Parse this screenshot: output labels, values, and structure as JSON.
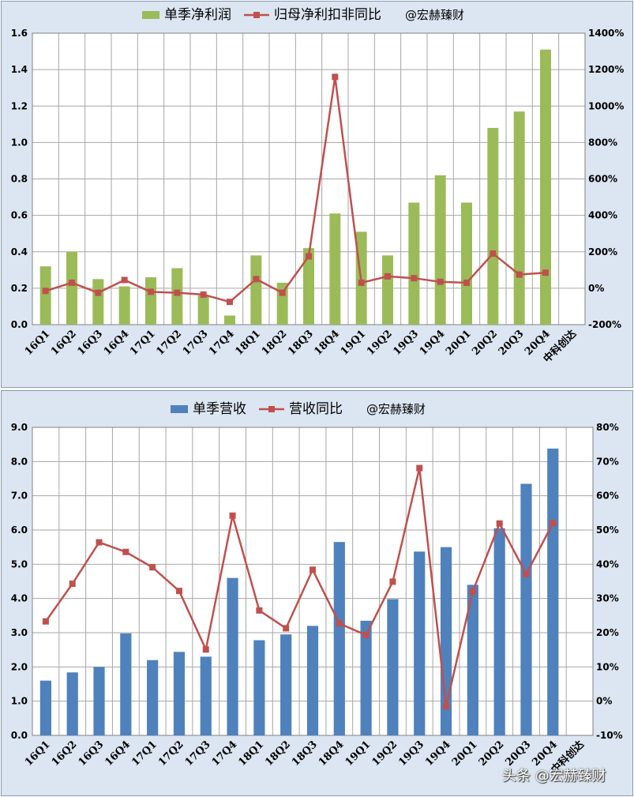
{
  "colors": {
    "panel_bg": "#dce6f2",
    "plot_bg": "#ffffff",
    "grid": "#a6a6a6",
    "profit_bar": "#9bbb59",
    "revenue_bar": "#4f81bd",
    "line": "#c0504d"
  },
  "watermark": "头条 @宏赫臻财",
  "chart_data": [
    {
      "type": "bar",
      "secondary_type": "line",
      "legend_position": "top",
      "grid": true,
      "categories": [
        "16Q1",
        "16Q2",
        "16Q3",
        "16Q4",
        "17Q1",
        "17Q2",
        "17Q3",
        "17Q4",
        "18Q1",
        "18Q2",
        "18Q3",
        "18Q4",
        "19Q1",
        "19Q2",
        "19Q3",
        "19Q4",
        "20Q1",
        "20Q2",
        "20Q3",
        "20Q4",
        "中科创达"
      ],
      "y_ticks": [
        "0.0",
        "0.2",
        "0.4",
        "0.6",
        "0.8",
        "1.0",
        "1.2",
        "1.4",
        "1.6"
      ],
      "y2_ticks": [
        "-200%",
        "0%",
        "200%",
        "400%",
        "600%",
        "800%",
        "1000%",
        "1200%",
        "1400%"
      ],
      "ylim": [
        0,
        1.6
      ],
      "y2lim": [
        -200,
        1400
      ],
      "series": [
        {
          "name": "单季净利润",
          "type": "bar",
          "axis": "left",
          "values": [
            0.32,
            0.4,
            0.25,
            0.21,
            0.26,
            0.31,
            0.16,
            0.05,
            0.38,
            0.23,
            0.42,
            0.61,
            0.51,
            0.38,
            0.67,
            0.82,
            0.67,
            1.08,
            1.17,
            1.51,
            null
          ]
        },
        {
          "name": "归母净利扣非同比",
          "type": "line",
          "axis": "right",
          "values": [
            -15,
            30,
            -25,
            45,
            -20,
            -25,
            -35,
            -75,
            50,
            -25,
            175,
            1160,
            30,
            65,
            55,
            35,
            30,
            190,
            75,
            85,
            null
          ]
        }
      ],
      "annotation": "@宏赫臻财"
    },
    {
      "type": "bar",
      "secondary_type": "line",
      "legend_position": "top",
      "grid": true,
      "categories": [
        "16Q1",
        "16Q2",
        "16Q3",
        "16Q4",
        "17Q1",
        "17Q2",
        "17Q3",
        "17Q4",
        "18Q1",
        "18Q2",
        "18Q3",
        "18Q4",
        "19Q1",
        "19Q2",
        "19Q3",
        "19Q4",
        "20Q1",
        "20Q2",
        "20Q3",
        "20Q4",
        "中科创达"
      ],
      "y_ticks": [
        "0.0",
        "1.0",
        "2.0",
        "3.0",
        "4.0",
        "5.0",
        "6.0",
        "7.0",
        "8.0",
        "9.0"
      ],
      "y2_ticks": [
        "-10%",
        "0%",
        "10%",
        "20%",
        "30%",
        "40%",
        "50%",
        "60%",
        "70%",
        "80%"
      ],
      "ylim": [
        0,
        9
      ],
      "y2lim": [
        -10,
        80
      ],
      "series": [
        {
          "name": "单季营收",
          "type": "bar",
          "axis": "left",
          "values": [
            1.6,
            1.84,
            2.0,
            2.98,
            2.2,
            2.44,
            2.3,
            4.6,
            2.78,
            2.95,
            3.2,
            5.65,
            3.35,
            3.98,
            5.37,
            5.5,
            4.4,
            6.05,
            7.35,
            8.38,
            null
          ]
        },
        {
          "name": "营收同比",
          "type": "line",
          "axis": "right",
          "values": [
            23.3,
            34.3,
            46.4,
            43.6,
            39.1,
            32.2,
            15.1,
            54.2,
            26.5,
            21.3,
            38.4,
            22.7,
            19.3,
            34.9,
            68.1,
            -1.5,
            32.1,
            51.9,
            37.1,
            52.0,
            null
          ]
        }
      ],
      "annotation": "@宏赫臻财"
    }
  ]
}
